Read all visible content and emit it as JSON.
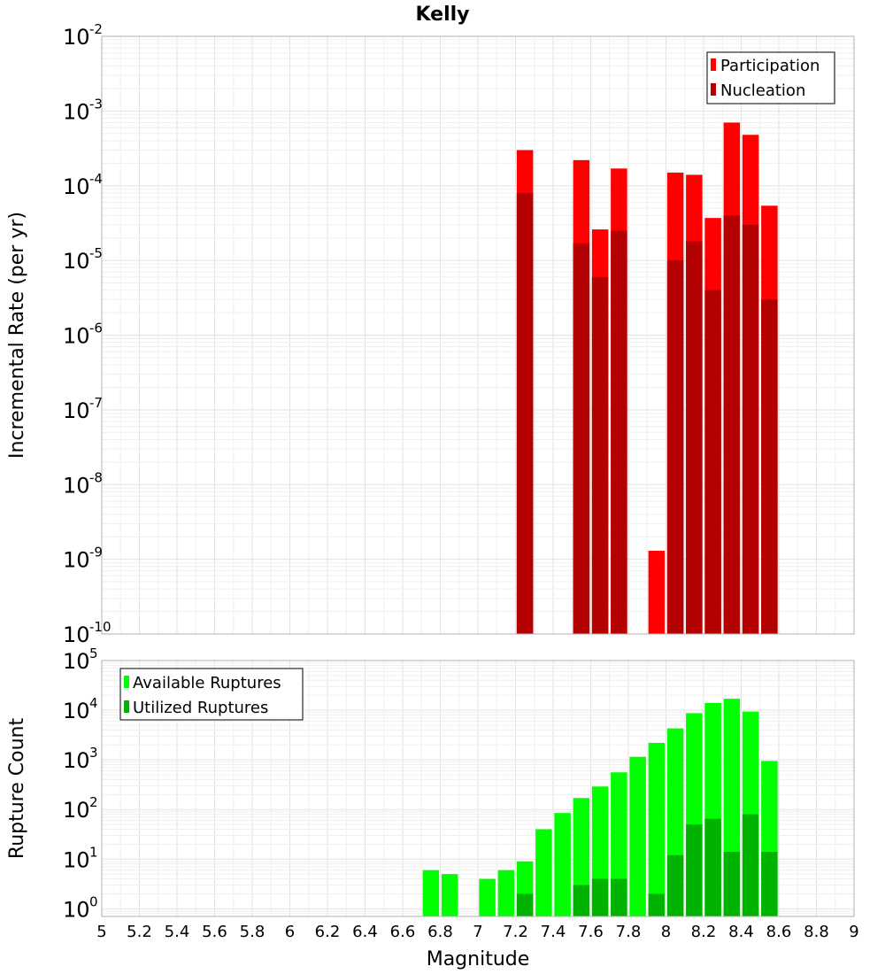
{
  "chart_data": [
    {
      "type": "bar",
      "scale": "log",
      "title": "Kelly",
      "xlabel": "Magnitude",
      "ylabel": "Incremental Rate (per yr)",
      "xlim": [
        5,
        9
      ],
      "ylim": [
        1e-10,
        0.01
      ],
      "y_ticks": [
        {
          "base": "10",
          "exp": "-10"
        },
        {
          "base": "10",
          "exp": "-9"
        },
        {
          "base": "10",
          "exp": "-8"
        },
        {
          "base": "10",
          "exp": "-7"
        },
        {
          "base": "10",
          "exp": "-6"
        },
        {
          "base": "10",
          "exp": "-5"
        },
        {
          "base": "10",
          "exp": "-4"
        },
        {
          "base": "10",
          "exp": "-3"
        },
        {
          "base": "10",
          "exp": "-2"
        }
      ],
      "legend": {
        "position": "top-right",
        "entries": [
          "Participation",
          "Nucleation"
        ]
      },
      "series": [
        {
          "name": "Participation",
          "color": "#ff0000",
          "points": [
            {
              "x": 7.25,
              "y": 0.0003
            },
            {
              "x": 7.55,
              "y": 0.00022
            },
            {
              "x": 7.65,
              "y": 2.6e-05
            },
            {
              "x": 7.75,
              "y": 0.00017
            },
            {
              "x": 7.95,
              "y": 1.3e-09
            },
            {
              "x": 8.05,
              "y": 0.00015
            },
            {
              "x": 8.15,
              "y": 0.00014
            },
            {
              "x": 8.25,
              "y": 3.7e-05
            },
            {
              "x": 8.35,
              "y": 0.0007
            },
            {
              "x": 8.45,
              "y": 0.00048
            },
            {
              "x": 8.55,
              "y": 5.4e-05
            }
          ]
        },
        {
          "name": "Nucleation",
          "color": "#b30000",
          "points": [
            {
              "x": 7.25,
              "y": 8e-05
            },
            {
              "x": 7.55,
              "y": 1.7e-05
            },
            {
              "x": 7.65,
              "y": 6e-06
            },
            {
              "x": 7.75,
              "y": 2.5e-05
            },
            {
              "x": 8.05,
              "y": 1e-05
            },
            {
              "x": 8.15,
              "y": 1.8e-05
            },
            {
              "x": 8.25,
              "y": 4e-06
            },
            {
              "x": 8.35,
              "y": 4e-05
            },
            {
              "x": 8.45,
              "y": 3e-05
            },
            {
              "x": 8.55,
              "y": 3e-06
            }
          ]
        }
      ]
    },
    {
      "type": "bar",
      "scale": "log",
      "xlabel": "Magnitude",
      "ylabel": "Rupture Count",
      "xlim": [
        5,
        9
      ],
      "ylim": [
        0.7,
        100000
      ],
      "x_ticks": [
        "5",
        "5.2",
        "5.4",
        "5.6",
        "5.8",
        "6",
        "6.2",
        "6.4",
        "6.6",
        "6.8",
        "7",
        "7.2",
        "7.4",
        "7.6",
        "7.8",
        "8",
        "8.2",
        "8.4",
        "8.6",
        "8.8",
        "9"
      ],
      "y_ticks": [
        {
          "base": "10",
          "exp": "0"
        },
        {
          "base": "10",
          "exp": "1"
        },
        {
          "base": "10",
          "exp": "2"
        },
        {
          "base": "10",
          "exp": "3"
        },
        {
          "base": "10",
          "exp": "4"
        },
        {
          "base": "10",
          "exp": "5"
        }
      ],
      "legend": {
        "position": "top-left",
        "entries": [
          "Available Ruptures",
          "Utilized Ruptures"
        ]
      },
      "series": [
        {
          "name": "Available Ruptures",
          "color": "#00ff00",
          "points": [
            {
              "x": 6.75,
              "y": 6
            },
            {
              "x": 6.85,
              "y": 5
            },
            {
              "x": 7.05,
              "y": 4
            },
            {
              "x": 7.15,
              "y": 6
            },
            {
              "x": 7.25,
              "y": 9
            },
            {
              "x": 7.35,
              "y": 40
            },
            {
              "x": 7.45,
              "y": 85
            },
            {
              "x": 7.55,
              "y": 170
            },
            {
              "x": 7.65,
              "y": 290
            },
            {
              "x": 7.75,
              "y": 560
            },
            {
              "x": 7.85,
              "y": 1150
            },
            {
              "x": 7.95,
              "y": 2200
            },
            {
              "x": 8.05,
              "y": 4300
            },
            {
              "x": 8.15,
              "y": 8700
            },
            {
              "x": 8.25,
              "y": 14000
            },
            {
              "x": 8.35,
              "y": 17000
            },
            {
              "x": 8.45,
              "y": 9400
            },
            {
              "x": 8.55,
              "y": 950
            }
          ]
        },
        {
          "name": "Utilized Ruptures",
          "color": "#00b300",
          "points": [
            {
              "x": 7.25,
              "y": 2
            },
            {
              "x": 7.55,
              "y": 3
            },
            {
              "x": 7.65,
              "y": 4
            },
            {
              "x": 7.75,
              "y": 4
            },
            {
              "x": 7.95,
              "y": 2
            },
            {
              "x": 8.05,
              "y": 12
            },
            {
              "x": 8.15,
              "y": 50
            },
            {
              "x": 8.25,
              "y": 65
            },
            {
              "x": 8.35,
              "y": 14
            },
            {
              "x": 8.45,
              "y": 80
            },
            {
              "x": 8.55,
              "y": 14
            }
          ]
        }
      ]
    }
  ]
}
